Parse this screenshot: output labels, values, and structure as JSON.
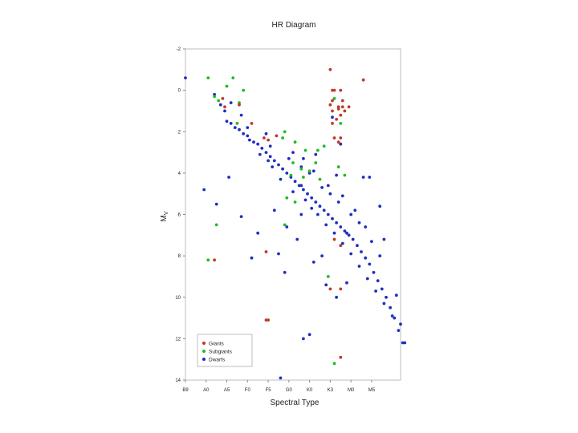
{
  "chart_data": {
    "type": "scatter",
    "title": "HR Diagram",
    "xlabel": "Spectral Type",
    "ylabel": "M",
    "ylabel_sub": "V",
    "x_ticks": [
      "B9",
      "A0",
      "A5",
      "F0",
      "F5",
      "G0",
      "K0",
      "K3",
      "M0",
      "M5"
    ],
    "xlim": [
      0,
      10.4
    ],
    "y_ticks": [
      "-2",
      "0",
      "2",
      "4",
      "6",
      "8",
      "10",
      "12",
      "14"
    ],
    "ylim": [
      -2,
      14
    ],
    "grid": false,
    "legend_position": "bottom-left",
    "series": [
      {
        "name": "Giants",
        "color": "#c0392b",
        "points": [
          [
            7.0,
            -1.0
          ],
          [
            8.6,
            -0.5
          ],
          [
            7.1,
            0.0
          ],
          [
            7.2,
            0.0
          ],
          [
            7.5,
            0.0
          ],
          [
            7.1,
            0.5
          ],
          [
            7.6,
            0.5
          ],
          [
            7.0,
            0.7
          ],
          [
            7.4,
            0.8
          ],
          [
            7.6,
            0.8
          ],
          [
            7.9,
            0.8
          ],
          [
            7.4,
            0.9
          ],
          [
            7.7,
            1.0
          ],
          [
            7.1,
            1.0
          ],
          [
            7.5,
            1.2
          ],
          [
            7.3,
            1.4
          ],
          [
            7.1,
            1.6
          ],
          [
            1.8,
            0.4
          ],
          [
            1.9,
            0.8
          ],
          [
            2.6,
            0.7
          ],
          [
            3.2,
            1.6
          ],
          [
            4.0,
            2.4
          ],
          [
            4.4,
            2.2
          ],
          [
            3.8,
            2.3
          ],
          [
            7.2,
            2.3
          ],
          [
            7.5,
            2.3
          ],
          [
            7.4,
            2.5
          ],
          [
            3.9,
            7.8
          ],
          [
            1.4,
            8.2
          ],
          [
            7.2,
            7.2
          ],
          [
            7.5,
            7.5
          ],
          [
            7.0,
            9.6
          ],
          [
            7.5,
            9.6
          ],
          [
            3.9,
            11.1
          ],
          [
            4.0,
            11.1
          ],
          [
            7.5,
            12.9
          ]
        ]
      },
      {
        "name": "Subgiants",
        "color": "#22bb22",
        "points": [
          [
            1.1,
            -0.6
          ],
          [
            2.3,
            -0.6
          ],
          [
            2.0,
            -0.2
          ],
          [
            2.8,
            0.0
          ],
          [
            1.4,
            0.3
          ],
          [
            1.6,
            0.5
          ],
          [
            2.6,
            0.6
          ],
          [
            2.5,
            1.6
          ],
          [
            4.8,
            2.0
          ],
          [
            4.7,
            2.3
          ],
          [
            5.3,
            2.5
          ],
          [
            5.8,
            2.9
          ],
          [
            6.4,
            2.9
          ],
          [
            6.7,
            2.7
          ],
          [
            5.2,
            3.5
          ],
          [
            5.6,
            3.8
          ],
          [
            6.0,
            3.9
          ],
          [
            6.3,
            3.5
          ],
          [
            5.1,
            4.1
          ],
          [
            5.7,
            4.2
          ],
          [
            6.5,
            4.3
          ],
          [
            7.4,
            3.7
          ],
          [
            7.7,
            4.1
          ],
          [
            4.9,
            5.2
          ],
          [
            5.3,
            5.4
          ],
          [
            4.8,
            6.5
          ],
          [
            1.5,
            6.5
          ],
          [
            1.1,
            8.2
          ],
          [
            7.2,
            0.4
          ],
          [
            7.5,
            1.6
          ],
          [
            6.9,
            9.0
          ],
          [
            7.2,
            13.2
          ]
        ]
      },
      {
        "name": "Dwarfs",
        "color": "#1f2fbf",
        "points": [
          [
            0.0,
            -0.6
          ],
          [
            1.4,
            0.2
          ],
          [
            1.7,
            0.7
          ],
          [
            1.9,
            1.0
          ],
          [
            2.0,
            1.5
          ],
          [
            2.2,
            1.6
          ],
          [
            2.4,
            1.8
          ],
          [
            2.6,
            1.9
          ],
          [
            2.8,
            2.1
          ],
          [
            3.0,
            2.2
          ],
          [
            3.1,
            2.4
          ],
          [
            3.3,
            2.5
          ],
          [
            3.5,
            2.6
          ],
          [
            3.7,
            2.8
          ],
          [
            3.9,
            3.0
          ],
          [
            4.1,
            3.2
          ],
          [
            4.3,
            3.4
          ],
          [
            4.5,
            3.6
          ],
          [
            4.7,
            3.8
          ],
          [
            4.9,
            4.0
          ],
          [
            5.1,
            4.2
          ],
          [
            5.3,
            4.4
          ],
          [
            5.5,
            4.6
          ],
          [
            5.7,
            4.8
          ],
          [
            5.9,
            5.0
          ],
          [
            6.1,
            5.2
          ],
          [
            6.3,
            5.4
          ],
          [
            6.5,
            5.6
          ],
          [
            6.7,
            5.8
          ],
          [
            6.9,
            6.0
          ],
          [
            7.1,
            6.2
          ],
          [
            7.3,
            6.4
          ],
          [
            7.5,
            6.6
          ],
          [
            7.7,
            6.8
          ],
          [
            7.9,
            7.0
          ],
          [
            8.1,
            7.2
          ],
          [
            8.3,
            7.5
          ],
          [
            8.5,
            7.8
          ],
          [
            8.7,
            8.1
          ],
          [
            8.9,
            8.4
          ],
          [
            9.1,
            8.8
          ],
          [
            9.3,
            9.2
          ],
          [
            9.5,
            9.6
          ],
          [
            9.7,
            10.0
          ],
          [
            9.9,
            10.5
          ],
          [
            10.1,
            11.0
          ],
          [
            10.3,
            11.6
          ],
          [
            10.5,
            12.2
          ],
          [
            3.6,
            3.1
          ],
          [
            4.2,
            3.7
          ],
          [
            4.6,
            4.3
          ],
          [
            5.2,
            4.9
          ],
          [
            5.8,
            5.3
          ],
          [
            6.4,
            6.0
          ],
          [
            6.8,
            6.5
          ],
          [
            7.2,
            6.9
          ],
          [
            7.6,
            7.4
          ],
          [
            8.0,
            7.9
          ],
          [
            8.4,
            8.5
          ],
          [
            8.8,
            9.1
          ],
          [
            9.2,
            9.7
          ],
          [
            9.6,
            10.3
          ],
          [
            10.0,
            10.9
          ],
          [
            2.7,
            1.2
          ],
          [
            3.0,
            1.8
          ],
          [
            4.1,
            2.7
          ],
          [
            5.0,
            3.3
          ],
          [
            5.6,
            3.7
          ],
          [
            6.0,
            4.0
          ],
          [
            6.6,
            4.7
          ],
          [
            7.0,
            5.0
          ],
          [
            7.4,
            5.4
          ],
          [
            8.0,
            6.0
          ],
          [
            8.4,
            6.4
          ],
          [
            9.0,
            7.3
          ],
          [
            9.4,
            8.0
          ],
          [
            5.2,
            3.0
          ],
          [
            5.7,
            3.3
          ],
          [
            6.2,
            3.9
          ],
          [
            6.9,
            4.6
          ],
          [
            7.6,
            5.1
          ],
          [
            8.2,
            5.8
          ],
          [
            2.1,
            4.2
          ],
          [
            0.9,
            4.8
          ],
          [
            1.5,
            5.5
          ],
          [
            2.7,
            6.1
          ],
          [
            3.5,
            6.9
          ],
          [
            4.3,
            5.8
          ],
          [
            4.9,
            6.6
          ],
          [
            5.6,
            6.0
          ],
          [
            5.4,
            7.2
          ],
          [
            3.2,
            8.1
          ],
          [
            4.5,
            7.9
          ],
          [
            4.8,
            8.8
          ],
          [
            6.2,
            8.3
          ],
          [
            6.6,
            8.0
          ],
          [
            6.8,
            9.4
          ],
          [
            7.8,
            6.9
          ],
          [
            8.9,
            4.2
          ],
          [
            9.4,
            5.6
          ],
          [
            7.3,
            10.0
          ],
          [
            7.8,
            9.3
          ],
          [
            6.0,
            11.8
          ],
          [
            5.7,
            12.0
          ],
          [
            10.6,
            12.2
          ],
          [
            4.6,
            13.9
          ],
          [
            7.5,
            2.6
          ],
          [
            3.9,
            2.1
          ],
          [
            7.1,
            1.3
          ],
          [
            2.2,
            0.6
          ],
          [
            8.6,
            4.2
          ],
          [
            5.6,
            4.6
          ],
          [
            6.1,
            5.7
          ],
          [
            7.3,
            4.1
          ],
          [
            4.0,
            3.4
          ],
          [
            6.3,
            3.1
          ],
          [
            8.7,
            6.6
          ],
          [
            9.6,
            7.2
          ],
          [
            10.2,
            9.9
          ],
          [
            10.4,
            11.3
          ]
        ]
      }
    ]
  }
}
